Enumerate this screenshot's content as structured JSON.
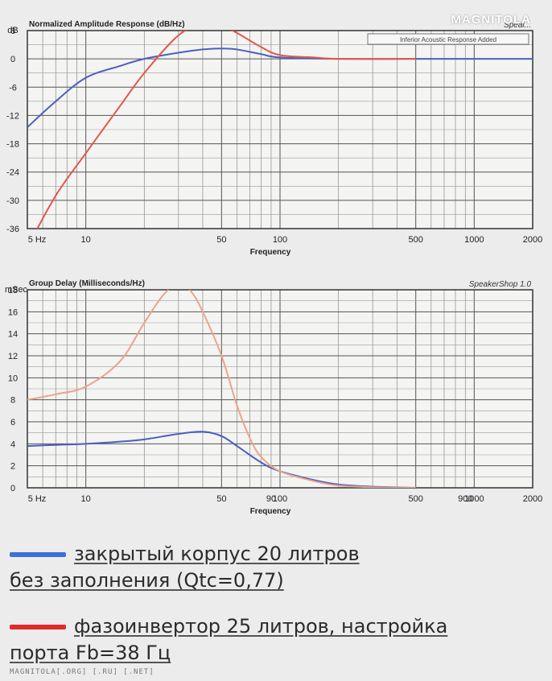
{
  "chart_data": [
    {
      "type": "line",
      "title": "Normalized Amplitude Response (dB/Hz)",
      "brand": "Speal...",
      "note": "Inferior Acoustic Response Added",
      "xlabel": "Frequency",
      "ylabel": "dB",
      "xscale": "log",
      "xlim": [
        5,
        2000
      ],
      "ylim": [
        -36,
        6
      ],
      "x_ticks": [
        "5 Hz",
        "10",
        "50",
        "100",
        "500",
        "1000",
        "2000"
      ],
      "y_ticks": [
        "6",
        "0",
        "-6",
        "-12",
        "-18",
        "-24",
        "-30",
        "-36"
      ],
      "series": [
        {
          "color": "#4a5fc1",
          "points": [
            [
              5,
              -14.5
            ],
            [
              7,
              -9
            ],
            [
              10,
              -4
            ],
            [
              15,
              -1.5
            ],
            [
              20,
              0
            ],
            [
              30,
              1.3
            ],
            [
              40,
              2
            ],
            [
              50,
              2.2
            ],
            [
              60,
              2
            ],
            [
              80,
              1
            ],
            [
              100,
              0.3
            ],
            [
              200,
              0
            ],
            [
              500,
              0
            ],
            [
              1000,
              0
            ],
            [
              2000,
              0
            ]
          ]
        },
        {
          "color": "#e0584a",
          "points": [
            [
              5,
              -40
            ],
            [
              7,
              -29
            ],
            [
              10,
              -20
            ],
            [
              15,
              -10
            ],
            [
              20,
              -3
            ],
            [
              30,
              5
            ],
            [
              40,
              7.3
            ],
            [
              50,
              7
            ],
            [
              60,
              5.5
            ],
            [
              80,
              2.5
            ],
            [
              100,
              0.8
            ],
            [
              150,
              0.3
            ],
            [
              200,
              0
            ],
            [
              500,
              0
            ]
          ]
        }
      ]
    },
    {
      "type": "line",
      "title": "Group Delay (Milliseconds/Hz)",
      "brand": "SpeakerShop 1.0",
      "xlabel": "Frequency",
      "ylabel": "mSec",
      "xscale": "log",
      "xlim": [
        5,
        2000
      ],
      "ylim": [
        0,
        18
      ],
      "x_ticks": [
        "5 Hz",
        "10",
        "50",
        "90",
        "100",
        "500",
        "900",
        "1000",
        "2000"
      ],
      "y_ticks": [
        "18",
        "16",
        "14",
        "12",
        "10",
        "8",
        "6",
        "4",
        "2",
        "0"
      ],
      "series": [
        {
          "color": "#4a5fc1",
          "points": [
            [
              5,
              3.8
            ],
            [
              7,
              3.9
            ],
            [
              10,
              4
            ],
            [
              15,
              4.2
            ],
            [
              20,
              4.4
            ],
            [
              30,
              4.9
            ],
            [
              40,
              5.1
            ],
            [
              50,
              4.7
            ],
            [
              60,
              3.8
            ],
            [
              80,
              2.3
            ],
            [
              100,
              1.5
            ],
            [
              150,
              0.7
            ],
            [
              200,
              0.3
            ],
            [
              300,
              0.1
            ],
            [
              500,
              0
            ]
          ]
        },
        {
          "color": "#eaa48c",
          "points": [
            [
              5,
              8
            ],
            [
              7,
              8.5
            ],
            [
              10,
              9.2
            ],
            [
              15,
              11.5
            ],
            [
              20,
              15
            ],
            [
              25,
              17.5
            ],
            [
              30,
              18.6
            ],
            [
              35,
              17.8
            ],
            [
              40,
              16
            ],
            [
              50,
              12
            ],
            [
              60,
              7.5
            ],
            [
              70,
              4.5
            ],
            [
              80,
              2.8
            ],
            [
              100,
              1.5
            ],
            [
              150,
              0.6
            ],
            [
              200,
              0.2
            ],
            [
              300,
              0.05
            ],
            [
              500,
              0
            ]
          ]
        }
      ]
    }
  ],
  "legend": [
    {
      "color": "#3f6fd8",
      "line1": "закрытый корпус 20 литров",
      "line2": "без заполнения (Qtc=0,77)"
    },
    {
      "color": "#e02a2a",
      "line1": "фазоинвертор 25 литров, настройка",
      "line2": "порта Fb=38 Гц"
    }
  ],
  "watermark_top": "MAGNITOLA",
  "watermark_bottom": "MAGNITOLA[.ORG] [.RU] [.NET]"
}
